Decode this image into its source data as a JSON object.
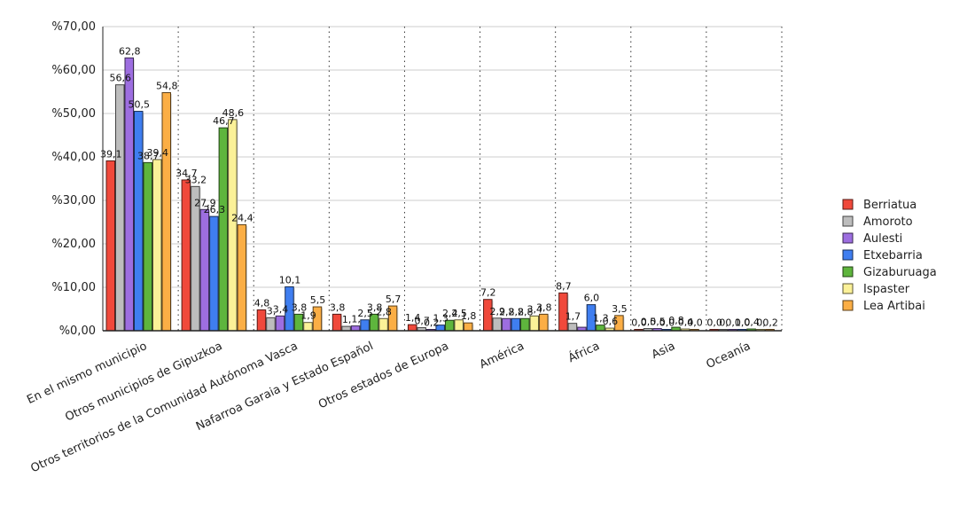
{
  "chart_data": {
    "type": "bar",
    "categories": [
      "En el mismo municipio",
      "Otros municipios de Gipuzkoa",
      "Otros territorios de la Comunidad Autónoma Vasca",
      "Nafarroa Garaia y Estado Español",
      "Otros estados de Europa",
      "América",
      "África",
      "Asia",
      "Oceanía"
    ],
    "series": [
      {
        "name": "Berriatua",
        "color": "#f0493b",
        "values": [
          39.1,
          34.7,
          4.8,
          3.8,
          1.4,
          7.2,
          8.7,
          0.0,
          0.0
        ],
        "labels": [
          "39,1",
          "34,7",
          "4,8",
          "3,8",
          "1,4",
          "7,2",
          "8,7",
          "0,0",
          "0,0"
        ]
      },
      {
        "name": "Amoroto",
        "color": "#bdbdbd",
        "values": [
          56.6,
          33.2,
          3.0,
          1.0,
          0.7,
          2.9,
          1.7,
          0.5,
          0.0
        ],
        "labels": [
          "56,6",
          "33,2",
          "3,",
          "1,",
          "0,7",
          "2,9",
          "1,7",
          "0,5",
          "0,"
        ]
      },
      {
        "name": "Aulesti",
        "color": "#9d6ee0",
        "values": [
          62.8,
          27.9,
          3.4,
          1.1,
          0.2,
          2.8,
          0.8,
          0.5,
          0.1
        ],
        "labels": [
          "62,8",
          "27,9",
          "3,4",
          "1,",
          "0,2",
          "2,8",
          "",
          "0,5",
          "0,1"
        ]
      },
      {
        "name": "Etxebarria",
        "color": "#3f7ef0",
        "values": [
          50.5,
          26.3,
          10.1,
          2.5,
          1.3,
          2.8,
          6.0,
          0.0,
          0.0
        ],
        "labels": [
          "50,5",
          "26,3",
          "10,1",
          "2,5",
          "1,3",
          "2,8",
          "6,0",
          "0,0",
          "0,0"
        ]
      },
      {
        "name": "Gizaburuaga",
        "color": "#5eb53d",
        "values": [
          38.7,
          46.7,
          3.8,
          3.8,
          2.4,
          2.8,
          1.3,
          0.8,
          0.4
        ],
        "labels": [
          "38,7",
          "46,7",
          "3,8",
          "3,8",
          "2,4",
          "2,8",
          "1,3",
          "0,8",
          "0,4"
        ]
      },
      {
        "name": "Ispaster",
        "color": "#fbf198",
        "values": [
          39.4,
          48.6,
          1.9,
          2.8,
          2.5,
          3.4,
          0.6,
          0.4,
          0.0
        ],
        "labels": [
          "39,4",
          "48,6",
          "1,9",
          "2,8",
          "2,5",
          "3,4",
          "0,6",
          "0,4",
          "0,"
        ]
      },
      {
        "name": "Lea Artibai",
        "color": "#fbae45",
        "values": [
          54.8,
          24.4,
          5.5,
          5.7,
          1.8,
          3.8,
          3.5,
          0.0,
          0.2
        ],
        "labels": [
          "54,8",
          "24,4",
          "5,5",
          "5,7",
          "1,8",
          "3,8",
          "3,5",
          "0,0",
          "0,2"
        ]
      }
    ],
    "title": "",
    "xlabel": "",
    "ylabel": "",
    "ylim": [
      0,
      70
    ],
    "yticks": [
      "%0,00",
      "%10,00",
      "%20,00",
      "%30,00",
      "%40,00",
      "%50,00",
      "%60,00",
      "%70,00"
    ],
    "grid": true,
    "legend_position": "right"
  }
}
